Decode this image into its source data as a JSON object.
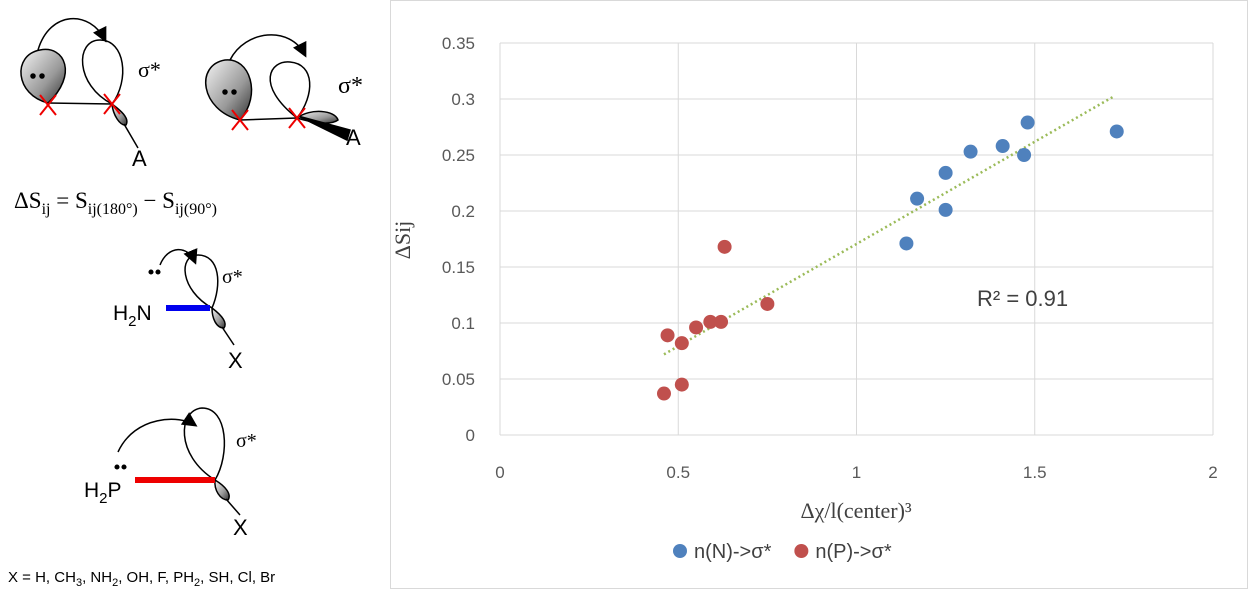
{
  "diagram": {
    "sigma": [
      "σ*",
      "σ*",
      "σ*",
      "σ*"
    ],
    "a": [
      "A",
      "A"
    ],
    "formula": [
      "ΔS",
      "ij",
      " = S",
      "ij(180°)",
      " − S",
      "ij(90°)"
    ],
    "h2n": [
      "H",
      "2",
      "N"
    ],
    "h2p": [
      "H",
      "2",
      "P"
    ],
    "x_sub": [
      "X",
      "X"
    ],
    "footnote": [
      "X = H, CH",
      "3",
      ", NH",
      "2",
      ", OH, F, PH",
      "2",
      ", SH, Cl, Br"
    ]
  },
  "chart_data": {
    "type": "scatter",
    "x_label": "Δχ/l(center)³",
    "y_label": "ΔSij",
    "annotation": "R² = 0.91",
    "xlim": [
      0,
      2
    ],
    "xticks": [
      0,
      0.5,
      1,
      1.5,
      2
    ],
    "ylim": [
      0,
      0.35
    ],
    "yticks": [
      0,
      0.05,
      0.1,
      0.15,
      0.2,
      0.25,
      0.3,
      0.35
    ],
    "grid": true,
    "legend": "bottom",
    "series": [
      {
        "name": "n(N)->σ*",
        "color": "#4f81bd",
        "x": [
          1.14,
          1.17,
          1.25,
          1.25,
          1.32,
          1.41,
          1.47,
          1.48,
          1.73
        ],
        "values": [
          0.171,
          0.211,
          0.234,
          0.201,
          0.253,
          0.258,
          0.25,
          0.279,
          0.271
        ]
      },
      {
        "name": "n(P)->σ*",
        "color": "#c0504d",
        "x": [
          0.46,
          0.47,
          0.51,
          0.51,
          0.55,
          0.59,
          0.62,
          0.63,
          0.75
        ],
        "values": [
          0.037,
          0.089,
          0.082,
          0.045,
          0.096,
          0.101,
          0.101,
          0.168,
          0.117
        ]
      }
    ],
    "trendline": {
      "color": "#9bbb59",
      "x": [
        0.46,
        1.72
      ],
      "values": [
        0.072,
        0.302
      ]
    }
  }
}
